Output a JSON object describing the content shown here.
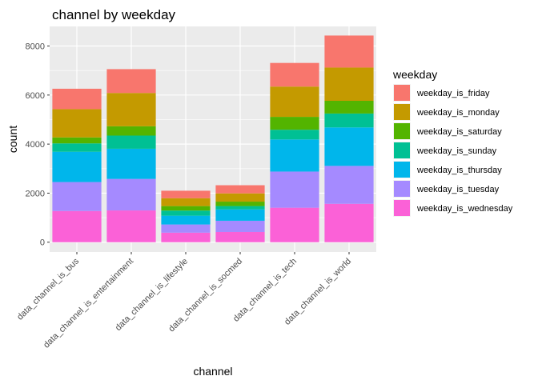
{
  "chart_data": {
    "type": "bar",
    "stacked": true,
    "title": "channel by weekday",
    "xlabel": "channel",
    "ylabel": "count",
    "ylim": [
      -400,
      8800
    ],
    "yticks": [
      0,
      2000,
      4000,
      6000,
      8000
    ],
    "grid": true,
    "legend_position": "right",
    "legend_title": "weekday",
    "categories": [
      "data_channel_is_bus",
      "data_channel_is_entertainment",
      "data_channel_is_lifestyle",
      "data_channel_is_socmed",
      "data_channel_is_tech",
      "data_channel_is_world"
    ],
    "series": [
      {
        "name": "weekday_is_friday",
        "color": "#F8766D",
        "values": [
          832,
          972,
          305,
          332,
          964,
          1305
        ]
      },
      {
        "name": "weekday_is_monday",
        "color": "#C49A00",
        "values": [
          1153,
          1358,
          322,
          337,
          1235,
          1356
        ]
      },
      {
        "name": "weekday_is_saturday",
        "color": "#53B400",
        "values": [
          243,
          380,
          182,
          180,
          525,
          519
        ]
      },
      {
        "name": "weekday_is_sunday",
        "color": "#00C094",
        "values": [
          343,
          536,
          210,
          137,
          396,
          567
        ]
      },
      {
        "name": "weekday_is_thursday",
        "color": "#00B6EB",
        "values": [
          1234,
          1231,
          358,
          463,
          1310,
          1569
        ]
      },
      {
        "name": "weekday_is_tuesday",
        "color": "#A58AFF",
        "values": [
          1182,
          1285,
          334,
          458,
          1474,
          1546
        ]
      },
      {
        "name": "weekday_is_wednesday",
        "color": "#FB61D7",
        "values": [
          1271,
          1295,
          388,
          416,
          1406,
          1565
        ]
      }
    ]
  }
}
